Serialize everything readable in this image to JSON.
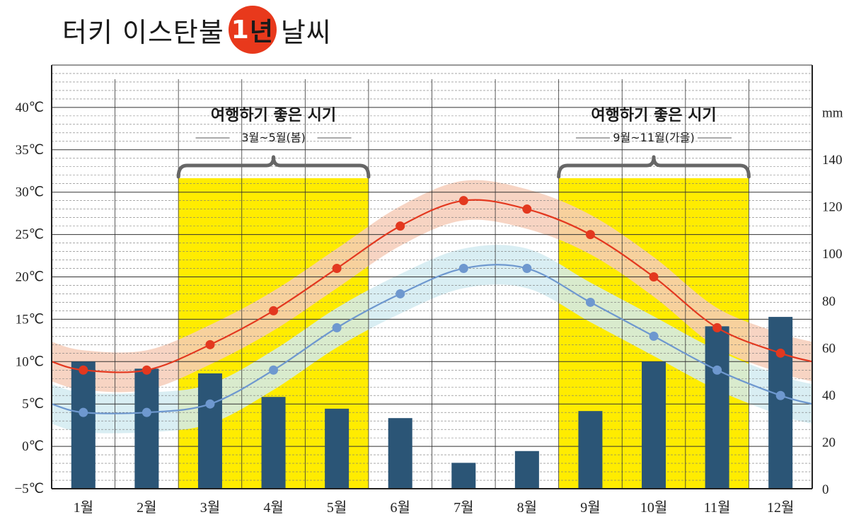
{
  "header": {
    "title_prefix": "터키 이스탄불",
    "title_badge_num": "1",
    "title_badge_text": "년",
    "title_suffix": "날씨"
  },
  "chart_data": {
    "type": "bar+line",
    "categories": [
      "1월",
      "2월",
      "3월",
      "4월",
      "5월",
      "6월",
      "7월",
      "8월",
      "9월",
      "10월",
      "11월",
      "12월"
    ],
    "left_axis": {
      "ticks": [
        -5,
        0,
        5,
        10,
        15,
        20,
        25,
        30,
        35,
        40
      ],
      "tick_labels": [
        "−5℃",
        "0℃",
        "5℃",
        "10℃",
        "15℃",
        "20℃",
        "25℃",
        "30℃",
        "35℃",
        "40℃"
      ],
      "range": [
        -5,
        45
      ]
    },
    "right_axis": {
      "unit": "mm",
      "ticks": [
        0,
        20,
        40,
        60,
        80,
        100,
        120,
        140
      ],
      "tick_labels": [
        "0",
        "20",
        "40",
        "60",
        "80",
        "100",
        "120",
        "140"
      ],
      "range": [
        0,
        180
      ]
    },
    "series": [
      {
        "type": "bar",
        "axis": "right",
        "color": "#2b5576",
        "values": [
          54,
          51,
          49,
          39,
          34,
          30,
          11,
          16,
          33,
          54,
          69,
          73
        ]
      },
      {
        "type": "line",
        "axis": "left",
        "color": "#e3381f",
        "band_color": "#f6cdb8",
        "values": [
          9,
          9,
          12,
          16,
          21,
          26,
          29,
          28,
          25,
          20,
          14,
          11
        ]
      },
      {
        "type": "line",
        "axis": "left",
        "color": "#6e98cf",
        "band_color": "#d2ebf1",
        "values": [
          4,
          4,
          5,
          9,
          14,
          18,
          21,
          21,
          17,
          13,
          9,
          6
        ]
      }
    ],
    "highlights": [
      {
        "from": "3월",
        "to": "5월",
        "title": "여행하기 좋은 시기",
        "subtitle": "3월~5월(봄)",
        "color": "#ffec00"
      },
      {
        "from": "9월",
        "to": "11월",
        "title": "여행하기 좋은 시기",
        "subtitle": "9월~11월(가을)",
        "color": "#ffec00"
      }
    ]
  }
}
